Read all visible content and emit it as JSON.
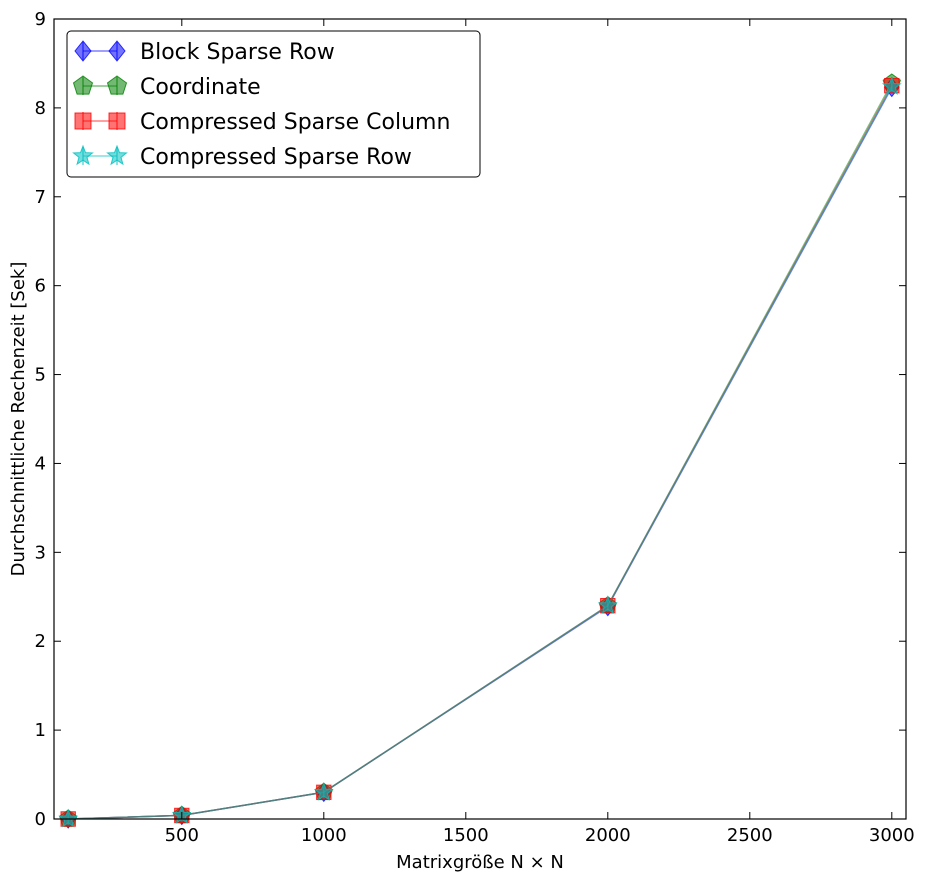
{
  "chart_data": {
    "type": "line",
    "title": "",
    "xlabel": "Matrixgröße N × N",
    "ylabel": "Durchschnittliche Rechenzeit [Sek]",
    "xlim": [
      50,
      3050
    ],
    "ylim": [
      0,
      9
    ],
    "xticks": [
      500,
      1000,
      1500,
      2000,
      2500,
      3000
    ],
    "yticks": [
      0,
      1,
      2,
      3,
      4,
      5,
      6,
      7,
      8,
      9
    ],
    "grid": false,
    "legend_position": "upper-left",
    "x": [
      100,
      500,
      1000,
      2000,
      3000
    ],
    "series": [
      {
        "name": "Block Sparse Row",
        "color": "#0000ff",
        "marker": "diamond",
        "values": [
          0.0,
          0.04,
          0.3,
          2.39,
          8.23
        ]
      },
      {
        "name": "Coordinate",
        "color": "#008000",
        "marker": "pentagon",
        "values": [
          0.0,
          0.04,
          0.3,
          2.4,
          8.28
        ]
      },
      {
        "name": "Compressed Sparse Column",
        "color": "#ff0000",
        "marker": "square",
        "values": [
          0.0,
          0.04,
          0.3,
          2.4,
          8.25
        ]
      },
      {
        "name": "Compressed Sparse Row",
        "color": "#00bfbf",
        "marker": "star",
        "values": [
          0.0,
          0.04,
          0.3,
          2.4,
          8.24
        ]
      }
    ]
  }
}
